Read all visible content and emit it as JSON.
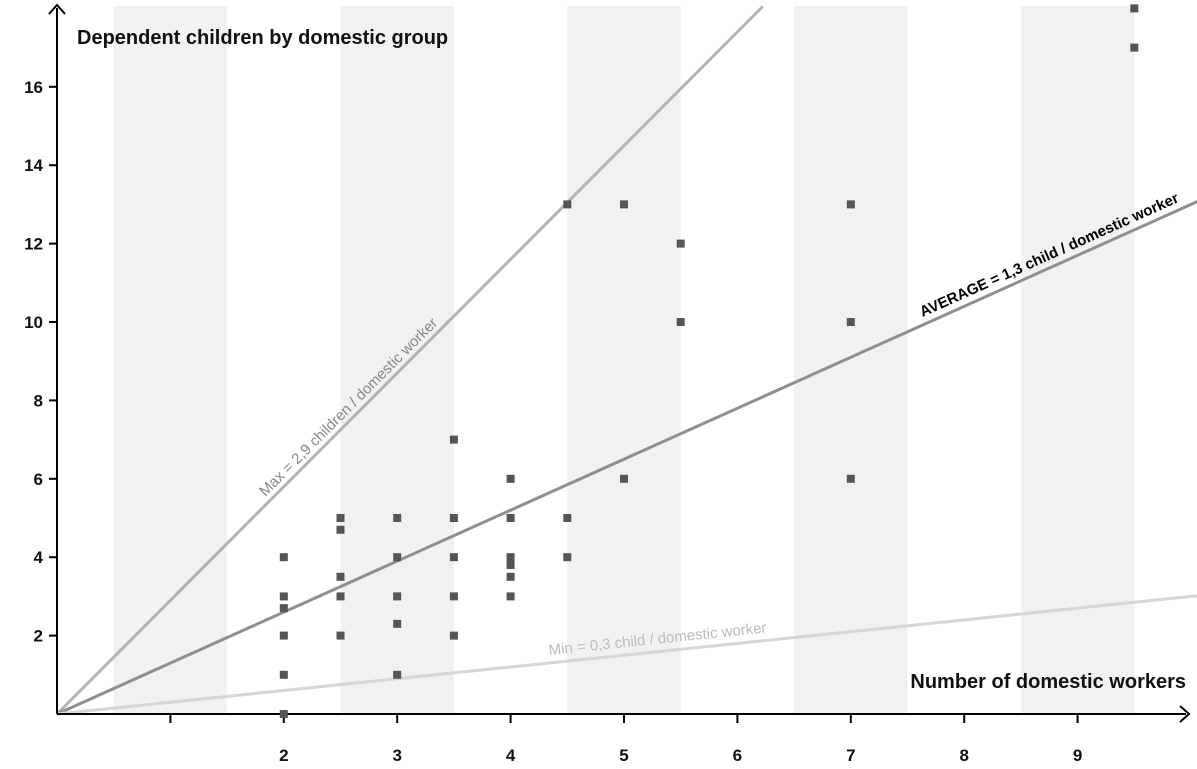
{
  "chart_data": {
    "type": "scatter",
    "title": "Dependent children by domestic group",
    "xlabel": "Number of domestic workers",
    "ylabel": "",
    "xlim": [
      0,
      10
    ],
    "ylim": [
      0,
      18
    ],
    "x_ticks": [
      1,
      2,
      3,
      4,
      5,
      6,
      7,
      8,
      9
    ],
    "x_tick_labels": [
      "",
      "2",
      "3",
      "4",
      "5",
      "6",
      "7",
      "8",
      "9"
    ],
    "y_ticks": [
      2,
      4,
      6,
      8,
      10,
      12,
      14,
      16
    ],
    "y_tick_labels": [
      "2",
      "4",
      "6",
      "8",
      "10",
      "12",
      "14",
      "16"
    ],
    "shaded_bands": [
      [
        0.5,
        1.5
      ],
      [
        2.5,
        3.5
      ],
      [
        4.5,
        5.5
      ],
      [
        6.5,
        7.5
      ],
      [
        8.5,
        9.5
      ]
    ],
    "reference_lines": [
      {
        "label": "Max = 2,9 children / domestic worker",
        "slope": 2.9,
        "color": "#b3b3b3",
        "text_color": "#888888"
      },
      {
        "label": "AVERAGE = 1,3 child / domestic worker",
        "slope": 1.3,
        "color": "#8f8f8f",
        "text_color": "#000000",
        "bold": true
      },
      {
        "label": "Min = 0,3 child / domestic worker",
        "slope": 0.3,
        "color": "#d6d6d6",
        "text_color": "#bcbcbc"
      }
    ],
    "points": [
      [
        2,
        0
      ],
      [
        2,
        1
      ],
      [
        2,
        2
      ],
      [
        2,
        2.7
      ],
      [
        2,
        3
      ],
      [
        2,
        4
      ],
      [
        2.5,
        2
      ],
      [
        2.5,
        3
      ],
      [
        2.5,
        3.5
      ],
      [
        2.5,
        4.7
      ],
      [
        2.5,
        5
      ],
      [
        3,
        1
      ],
      [
        3,
        2.3
      ],
      [
        3,
        3
      ],
      [
        3,
        4
      ],
      [
        3,
        5
      ],
      [
        3.5,
        2
      ],
      [
        3.5,
        3
      ],
      [
        3.5,
        4
      ],
      [
        3.5,
        5
      ],
      [
        3.5,
        7
      ],
      [
        4,
        3
      ],
      [
        4,
        3.5
      ],
      [
        4,
        3.8
      ],
      [
        4,
        4
      ],
      [
        4,
        5
      ],
      [
        4,
        6
      ],
      [
        4.5,
        4
      ],
      [
        4.5,
        5
      ],
      [
        4.5,
        13
      ],
      [
        5,
        6
      ],
      [
        5,
        13
      ],
      [
        5.5,
        10
      ],
      [
        5.5,
        12
      ],
      [
        7,
        6
      ],
      [
        7,
        10
      ],
      [
        7,
        13
      ],
      [
        9.5,
        17
      ],
      [
        9.5,
        18
      ]
    ]
  }
}
